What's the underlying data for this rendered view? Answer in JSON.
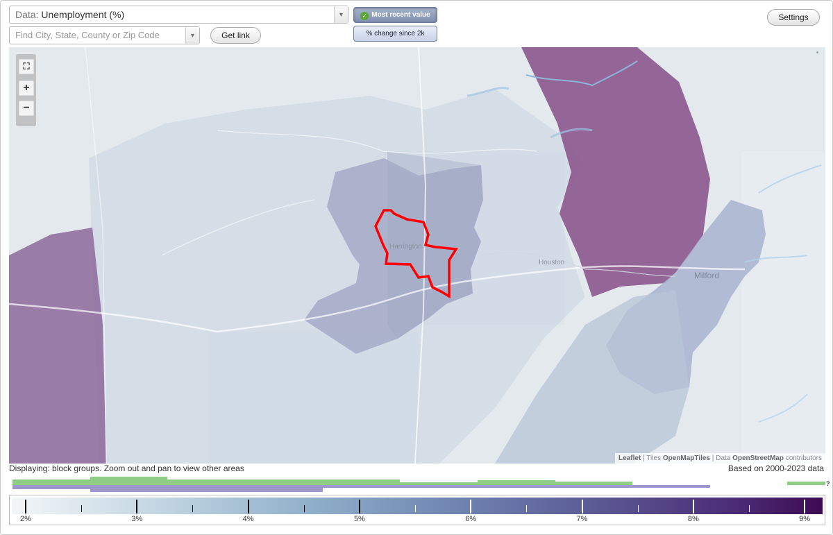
{
  "data_select": {
    "prefix": "Data:",
    "value": "Unemployment (%)"
  },
  "search": {
    "placeholder": "Find City, State, County or Zip Code"
  },
  "buttons": {
    "get_link": "Get link",
    "most_recent": "Most recent value",
    "pct_change": "% change since 2k",
    "settings": "Settings"
  },
  "map": {
    "places": {
      "harrington": "Harrington",
      "houston": "Houston",
      "milford": "Milford"
    },
    "attribution": {
      "leaflet": "Leaflet",
      "sep1": "|",
      "tiles": "Tiles",
      "omt": "OpenMapTiles",
      "sep2": "|",
      "data": "Data",
      "osm": "OpenStreetMap",
      "contrib": "contributors"
    },
    "highlight_color": "#ff0000"
  },
  "status": {
    "displaying": "Displaying: block groups. Zoom out and pan to view other areas",
    "based_on": "Based on 2000-2023 data"
  },
  "histogram_qmark": "?",
  "legend": {
    "labels": [
      "2%",
      "3%",
      "4%",
      "5%",
      "6%",
      "7%",
      "8%",
      "9%"
    ],
    "colors": {
      "low": "#f3f6f8",
      "mid": "#8fafca",
      "high": "#3d0b54"
    }
  },
  "colors": {
    "green_hist": "#8fcc86",
    "purple_hist": "#9d97cc",
    "purple_region": "#8c5a8c"
  }
}
